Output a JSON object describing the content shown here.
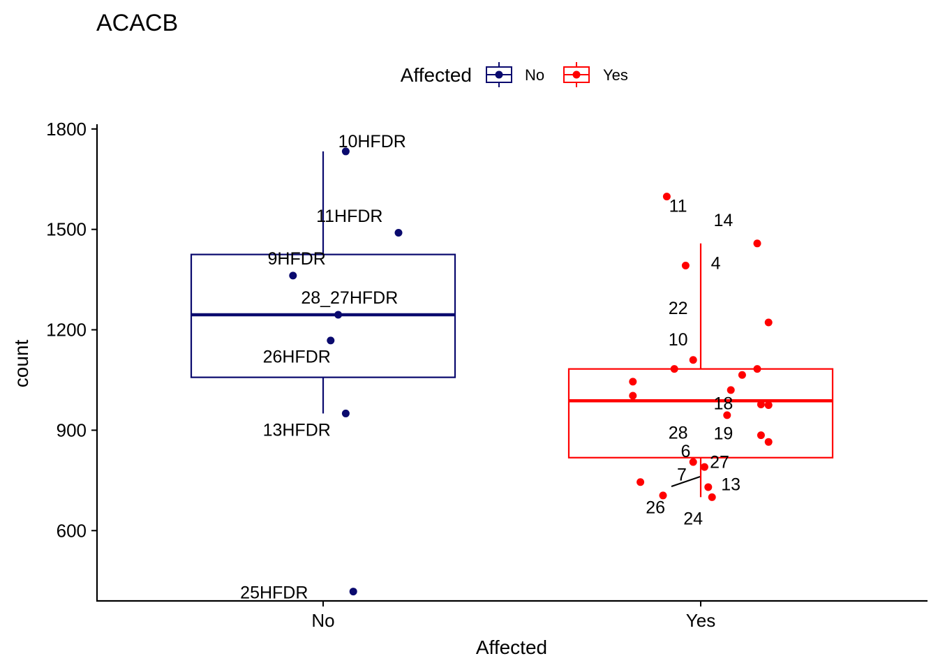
{
  "chart_data": {
    "type": "boxplot",
    "title": "ACACB",
    "xlabel": "Affected",
    "ylabel": "count",
    "ylim": [
      390,
      1810
    ],
    "yticks": [
      600,
      900,
      1200,
      1500,
      1800
    ],
    "categories": [
      "No",
      "Yes"
    ],
    "legend": {
      "title": "Affected",
      "position": "top",
      "entries": [
        {
          "label": "No",
          "color": "#0a0a6e"
        },
        {
          "label": "Yes",
          "color": "#ff0000"
        }
      ]
    },
    "boxes": [
      {
        "group": "No",
        "color": "#0a0a6e",
        "whisker_low": 950,
        "q1": 1058,
        "median": 1245,
        "q3": 1425,
        "whisker_high": 1733
      },
      {
        "group": "Yes",
        "color": "#ff0000",
        "whisker_low": 700,
        "q1": 818,
        "median": 988,
        "q3": 1083,
        "whisker_high": 1458
      }
    ],
    "series": [
      {
        "name": "No",
        "color": "#0a0a6e",
        "points": [
          {
            "x": 0.06,
            "y": 1733,
            "label": "10HFDR",
            "lx": 0.13,
            "ly": 1745,
            "anchor": "middle"
          },
          {
            "x": 0.2,
            "y": 1490,
            "label": "11HFDR",
            "lx": 0.07,
            "ly": 1522,
            "anchor": "middle"
          },
          {
            "x": -0.08,
            "y": 1362,
            "label": "9HFDR",
            "lx": -0.07,
            "ly": 1395,
            "anchor": "middle"
          },
          {
            "x": 0.04,
            "y": 1245,
            "label": "28_27HFDR",
            "lx": 0.07,
            "ly": 1278,
            "anchor": "middle"
          },
          {
            "x": 0.02,
            "y": 1168,
            "label": "26HFDR",
            "lx": -0.07,
            "ly": 1102,
            "anchor": "middle"
          },
          {
            "x": 0.06,
            "y": 950,
            "label": "13HFDR",
            "lx": -0.07,
            "ly": 883,
            "anchor": "middle"
          },
          {
            "x": 0.08,
            "y": 418,
            "label": "25HFDR",
            "lx": -0.13,
            "ly": 397,
            "anchor": "middle"
          }
        ]
      },
      {
        "name": "Yes",
        "color": "#ff0000",
        "points": [
          {
            "x": -0.09,
            "y": 1598,
            "label": "11",
            "lx": -0.06,
            "ly": 1552,
            "anchor": "middle"
          },
          {
            "x": 0.15,
            "y": 1458,
            "label": "14",
            "lx": 0.06,
            "ly": 1510,
            "anchor": "middle"
          },
          {
            "x": -0.04,
            "y": 1392,
            "label": "4",
            "lx": 0.04,
            "ly": 1382,
            "anchor": "middle"
          },
          {
            "x": 0.18,
            "y": 1222,
            "label": "22",
            "lx": -0.06,
            "ly": 1247,
            "anchor": "middle"
          },
          {
            "x": -0.02,
            "y": 1110,
            "label": "10",
            "lx": -0.06,
            "ly": 1153,
            "anchor": "middle"
          },
          {
            "x": -0.07,
            "y": 1083
          },
          {
            "x": 0.15,
            "y": 1083
          },
          {
            "x": 0.11,
            "y": 1065
          },
          {
            "x": -0.18,
            "y": 1045
          },
          {
            "x": 0.08,
            "y": 1020
          },
          {
            "x": -0.18,
            "y": 1003
          },
          {
            "x": 0.16,
            "y": 977,
            "label": "18",
            "lx": 0.06,
            "ly": 962,
            "anchor": "middle"
          },
          {
            "x": 0.18,
            "y": 975
          },
          {
            "x": 0.07,
            "y": 945,
            "label": "28",
            "lx": -0.06,
            "ly": 875,
            "anchor": "middle"
          },
          {
            "x": 0.16,
            "y": 885,
            "label": "19",
            "lx": 0.06,
            "ly": 873,
            "anchor": "middle"
          },
          {
            "x": 0.18,
            "y": 865
          },
          {
            "x": -0.02,
            "y": 805,
            "label": "6",
            "lx": -0.04,
            "ly": 820,
            "anchor": "middle"
          },
          {
            "x": 0.01,
            "y": 790,
            "label": "27",
            "lx": 0.05,
            "ly": 787,
            "anchor": "middle"
          },
          {
            "x": -0.16,
            "y": 745,
            "label": "7",
            "lx": -0.05,
            "ly": 750,
            "anchor": "middle"
          },
          {
            "x": 0.02,
            "y": 730,
            "label": "13",
            "lx": 0.08,
            "ly": 720,
            "anchor": "middle"
          },
          {
            "x": -0.1,
            "y": 705,
            "label": "26",
            "lx": -0.12,
            "ly": 652,
            "anchor": "middle"
          },
          {
            "x": 0.03,
            "y": 700,
            "label": "24",
            "lx": -0.02,
            "ly": 618,
            "anchor": "middle"
          }
        ]
      }
    ]
  }
}
